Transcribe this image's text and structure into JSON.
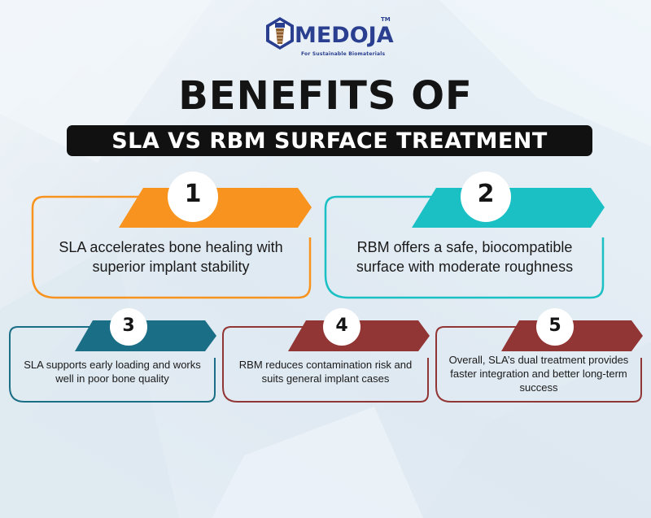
{
  "brand": {
    "name": "MEDOJA",
    "trademark": "TM",
    "tagline": "For Sustainable Biomaterials"
  },
  "heading": {
    "title": "BENEFITS OF",
    "subtitle": "SLA VS RBM SURFACE TREATMENT"
  },
  "cards": [
    {
      "number": "1",
      "text": "SLA accelerates bone healing with superior implant stability",
      "accent": "#f7931e"
    },
    {
      "number": "2",
      "text": "RBM offers a safe, biocompatible surface with moderate roughness",
      "accent": "#1bc0c4"
    },
    {
      "number": "3",
      "text": "SLA supports early loading and works well in poor bone quality",
      "accent": "#1a6e86"
    },
    {
      "number": "4",
      "text": "RBM reduces contamination risk and suits general implant cases",
      "accent": "#923635"
    },
    {
      "number": "5",
      "text": "Overall, SLA’s dual treatment provides faster integration and better long-term success",
      "accent": "#923635"
    }
  ],
  "colors": {
    "brand_blue": "#2a3f8f",
    "title_dark": "#141414",
    "background": "#e8f0f6"
  }
}
